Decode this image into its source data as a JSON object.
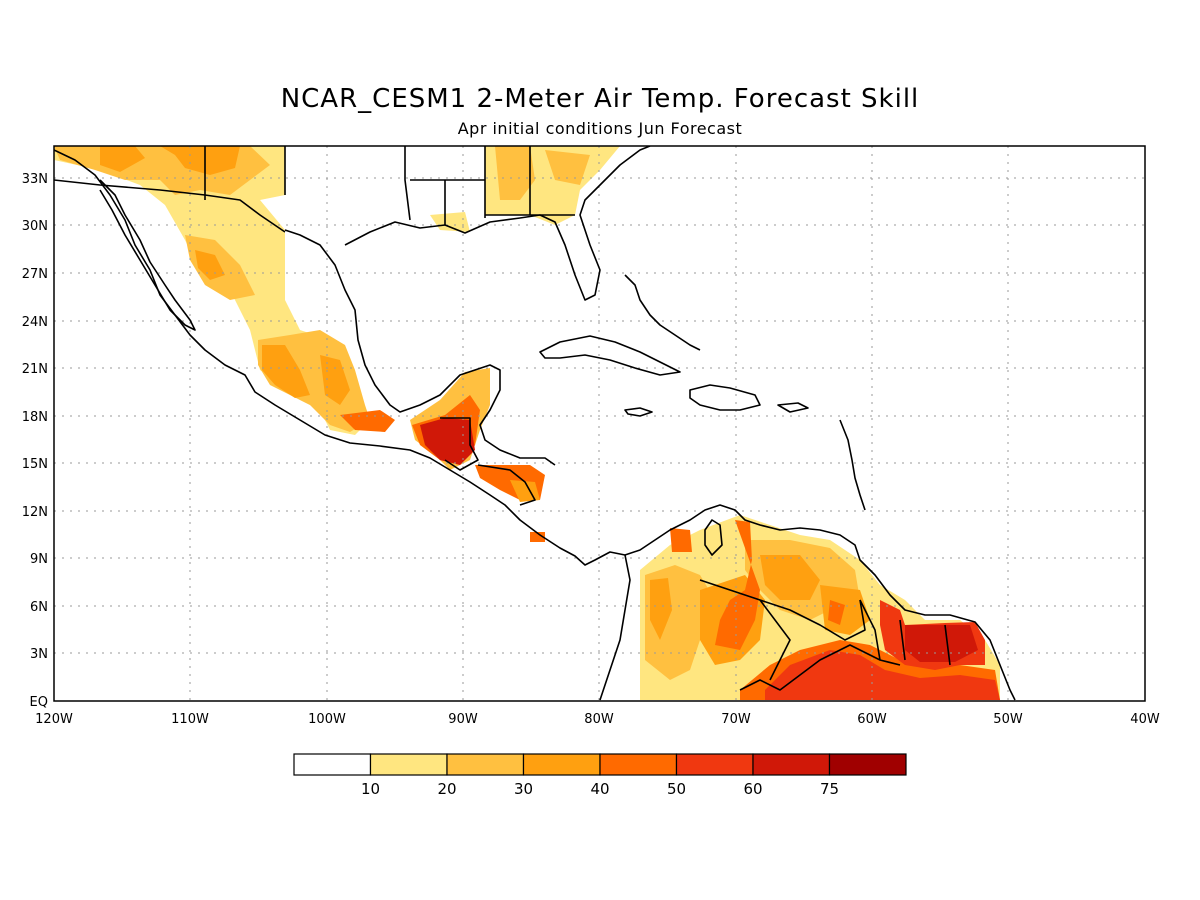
{
  "title": "NCAR_CESM1 2-Meter Air Temp. Forecast Skill",
  "subtitle": "Apr initial conditions  Jun Forecast",
  "map": {
    "lon_range": [
      -120,
      -40
    ],
    "lat_range": [
      0,
      35
    ],
    "lon_ticks": [
      "120W",
      "110W",
      "100W",
      "90W",
      "80W",
      "70W",
      "60W",
      "50W",
      "40W"
    ],
    "lat_ticks": [
      "EQ",
      "3N",
      "6N",
      "9N",
      "12N",
      "15N",
      "18N",
      "21N",
      "24N",
      "27N",
      "30N",
      "33N"
    ],
    "grid": "dotted"
  },
  "colorbar": {
    "labels": [
      "10",
      "20",
      "30",
      "40",
      "50",
      "60",
      "75"
    ],
    "colors": [
      "#ffffff",
      "#ffe680",
      "#ffc040",
      "#ffa010",
      "#ff6a00",
      "#f03810",
      "#d01808",
      "#a00000"
    ]
  }
}
